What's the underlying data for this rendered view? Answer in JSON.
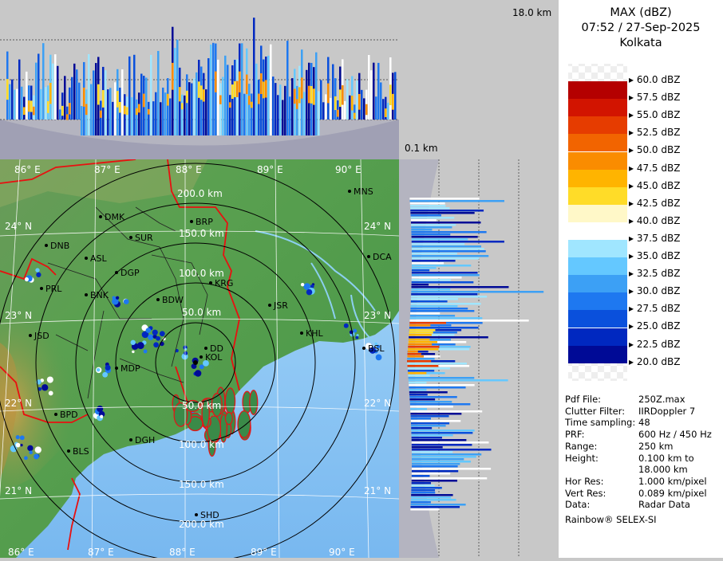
{
  "header": {
    "product": "MAX (dBZ)",
    "datetime": "07:52 / 27-Sep-2025",
    "station": "Kolkata"
  },
  "panels": {
    "top_height_label": "18.0 km",
    "bottom_height_label": "0.1 km"
  },
  "legend": {
    "levels": [
      {
        "label": "60.0 dBZ",
        "color": ""
      },
      {
        "label": "57.5 dBZ",
        "color": "#b40000"
      },
      {
        "label": "55.0 dBZ",
        "color": "#d21400"
      },
      {
        "label": "52.5 dBZ",
        "color": "#e63c00"
      },
      {
        "label": "50.0 dBZ",
        "color": "#f26400"
      },
      {
        "label": "47.5 dBZ",
        "color": "#fa8c00"
      },
      {
        "label": "45.0 dBZ",
        "color": "#ffb400"
      },
      {
        "label": "42.5 dBZ",
        "color": "#ffdc28"
      },
      {
        "label": "40.0 dBZ",
        "color": "#fff8c8"
      },
      {
        "label": "37.5 dBZ",
        "color": "#ffffff"
      },
      {
        "label": "35.0 dBZ",
        "color": "#a0e6ff"
      },
      {
        "label": "32.5 dBZ",
        "color": "#64c8ff"
      },
      {
        "label": "30.0 dBZ",
        "color": "#3ca0f5"
      },
      {
        "label": "27.5 dBZ",
        "color": "#1e78f0"
      },
      {
        "label": "25.0 dBZ",
        "color": "#0a50dc"
      },
      {
        "label": "22.5 dBZ",
        "color": "#0028c0"
      },
      {
        "label": "20.0 dBZ",
        "color": "#000a96"
      }
    ]
  },
  "info": [
    {
      "key": "Pdf File:",
      "value": "250Z.max"
    },
    {
      "key": "Clutter Filter:",
      "value": "IIRDoppler 7"
    },
    {
      "key": "Time sampling:",
      "value": "48"
    },
    {
      "key": "PRF:",
      "value": "600 Hz / 450 Hz"
    },
    {
      "key": "Range:",
      "value": "250 km"
    },
    {
      "key": "Height:",
      "value": "0.100 km to"
    },
    {
      "key": "",
      "value": "18.000 km"
    },
    {
      "key": "Hor Res:",
      "value": "1.000 km/pixel"
    },
    {
      "key": "Vert Res:",
      "value": "0.089 km/pixel"
    },
    {
      "key": "Data:",
      "value": "Radar Data"
    }
  ],
  "footer": "Rainbow® SELEX-SI",
  "map": {
    "lon_labels_top": [
      "86° E",
      "87° E",
      "88° E",
      "89° E",
      "90° E"
    ],
    "lon_labels_bottom": [
      "86° E",
      "87° E",
      "88° E",
      "89° E",
      "90° E"
    ],
    "lat_labels_left": [
      "24° N",
      "23° N",
      "22° N",
      "21° N"
    ],
    "lat_labels_right": [
      "24° N",
      "23° N",
      "22° N",
      "21° N"
    ],
    "range_rings": [
      "50.0 km",
      "100.0 km",
      "150.0 km",
      "200.0 km"
    ],
    "range_rings_south": [
      "50.0 km",
      "100.0 km",
      "150.0 km",
      "200.0 km"
    ],
    "cities": [
      "MNS",
      "DMK",
      "BRP",
      "DNB",
      "SUR",
      "ASL",
      "DGP",
      "DCA",
      "PRL",
      "BNK",
      "BDW",
      "KRG",
      "JSR",
      "JSD",
      "KHL",
      "MDP",
      "KOL",
      "DD",
      "BSL",
      "BPD",
      "DGH",
      "BLS",
      "SHD"
    ]
  }
}
